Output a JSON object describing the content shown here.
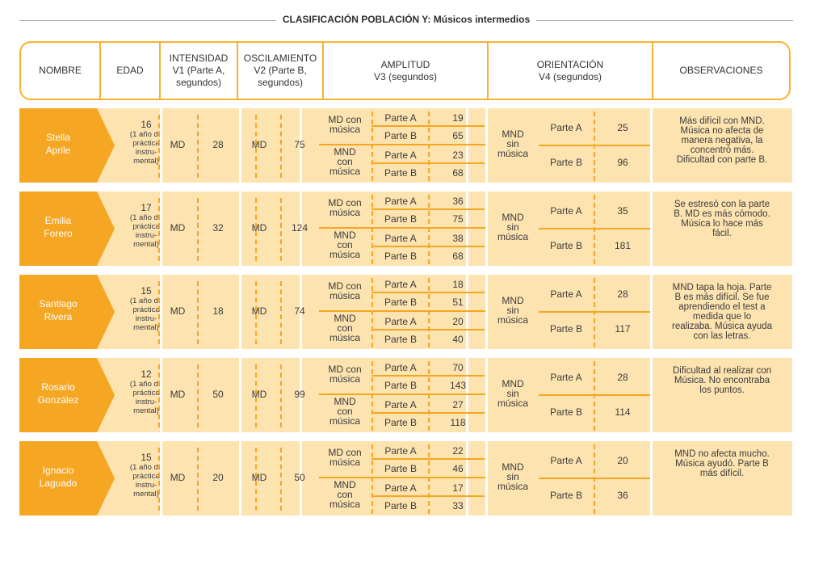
{
  "title": "CLASIFICACIÓN POBLACIÓN Y: Músicos intermedios",
  "headers": {
    "nombre": "NOMBRE",
    "edad": "EDAD",
    "intensidad": [
      "INTENSIDAD",
      "V1 (Parte A,",
      "segundos)"
    ],
    "oscilamiento": [
      "OSCILAMIENTO",
      "V2 (Parte B,",
      "segundos)"
    ],
    "amplitud": [
      "AMPLITUD",
      "V3 (segundos)"
    ],
    "orientacion": [
      "ORIENTACIÓN",
      "V4 (segundos)"
    ],
    "observaciones": "OBSERVACIONES"
  },
  "labels": {
    "md": "MD",
    "md_con_musica": [
      "MD con",
      "música"
    ],
    "mnd_con_musica": [
      "MND",
      "con",
      "música"
    ],
    "mnd_sin_musica": [
      "MND",
      "sin",
      "música"
    ],
    "parte_a": "Parte A",
    "parte_b": "Parte B",
    "age_note": [
      "(1 año de",
      "práctica",
      "instru-",
      "mental)"
    ]
  },
  "rows": [
    {
      "name": [
        "Stella",
        "Aprile"
      ],
      "age": "16",
      "v1": "28",
      "v2": "75",
      "v3": {
        "md_a": "19",
        "md_b": "65",
        "mnd_a": "23",
        "mnd_b": "68"
      },
      "v4": {
        "a": "25",
        "b": "96"
      },
      "obs": [
        "Más difícil con MND.",
        "Música no afecta de",
        "manera negativa, la",
        "concentró más.",
        "Dificultad con parte B."
      ]
    },
    {
      "name": [
        "Emilia",
        "Forero"
      ],
      "age": "17",
      "v1": "32",
      "v2": "124",
      "v3": {
        "md_a": "36",
        "md_b": "75",
        "mnd_a": "38",
        "mnd_b": "68"
      },
      "v4": {
        "a": "35",
        "b": "181"
      },
      "obs": [
        "Se estresó con la parte",
        "B. MD es más cómodo.",
        "Música lo hace más",
        "fácil."
      ]
    },
    {
      "name": [
        "Santiago",
        "Rivera"
      ],
      "age": "15",
      "v1": "18",
      "v2": "74",
      "v3": {
        "md_a": "18",
        "md_b": "51",
        "mnd_a": "20",
        "mnd_b": "40"
      },
      "v4": {
        "a": "28",
        "b": "117"
      },
      "obs": [
        "MND tapa la hoja. Parte",
        "B es más difícil. Se fue",
        "aprendiendo el test a",
        "medida que lo",
        "realizaba. Música ayuda",
        "con las letras."
      ]
    },
    {
      "name": [
        "Rosario",
        "González"
      ],
      "age": "12",
      "v1": "50",
      "v2": "99",
      "v3": {
        "md_a": "70",
        "md_b": "143",
        "mnd_a": "27",
        "mnd_b": "118"
      },
      "v4": {
        "a": "28",
        "b": "114"
      },
      "obs": [
        "Dificultad al realizar con",
        "Música. No encontraba",
        "los puntos."
      ]
    },
    {
      "name": [
        "Ignacio",
        "Laguado"
      ],
      "age": "15",
      "v1": "20",
      "v2": "50",
      "v3": {
        "md_a": "22",
        "md_b": "46",
        "mnd_a": "17",
        "mnd_b": "33"
      },
      "v4": {
        "a": "20",
        "b": "36"
      },
      "obs": [
        "MND no afecta mucho.",
        "Música ayudó. Parte B",
        "más difícil."
      ]
    }
  ]
}
